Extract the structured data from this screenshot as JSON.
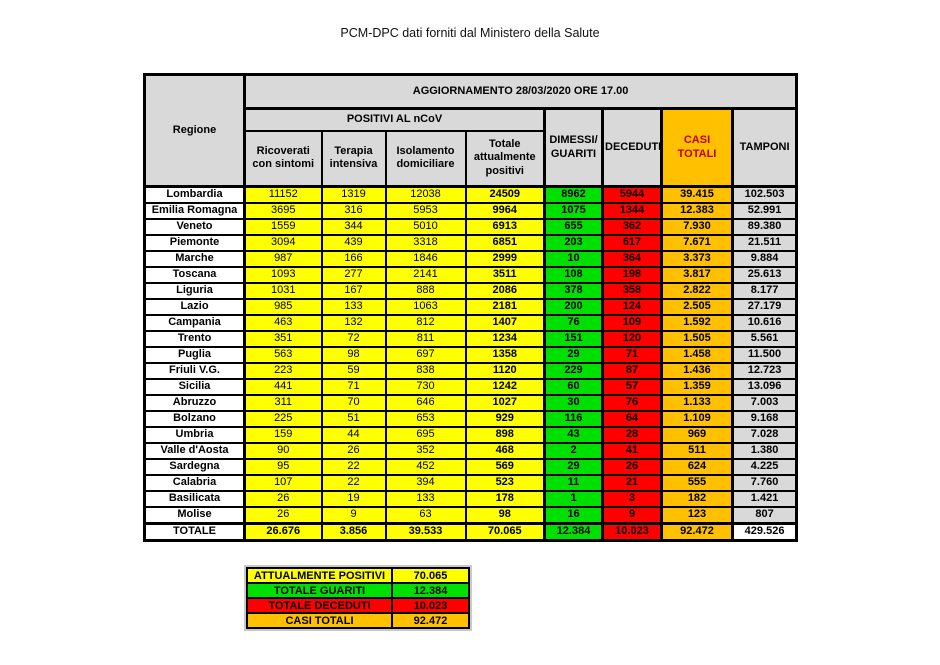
{
  "page_title": "PCM-DPC dati forniti dal Ministero della Salute",
  "colors": {
    "yellow": "#FFFF00",
    "green": "#00E000",
    "red": "#FF0000",
    "orange": "#FFC000",
    "header_gray": "#D9D9D9",
    "casi_totali_header_text": "#C00000"
  },
  "chart_data": {
    "type": "table",
    "update_header": "AGGIORNAMENTO 28/03/2020 ORE 17.00",
    "region_header": "Regione",
    "group_header": "POSITIVI AL nCoV",
    "sub_headers": [
      "Ricoverati con sintomi",
      "Terapia intensiva",
      "Isolamento domiciliare",
      "Totale attualmente positivi"
    ],
    "dimessi_header": "DIMESSI/\nGUARITI",
    "deceduti_header": "DECEDUTI",
    "casi_totali_header": "CASI TOTALI",
    "tamponi_header": "TAMPONI",
    "columns": [
      "Regione",
      "Ricoverati con sintomi",
      "Terapia intensiva",
      "Isolamento domiciliare",
      "Totale attualmente positivi",
      "DIMESSI/GUARITI",
      "DECEDUTI",
      "CASI TOTALI",
      "TAMPONI"
    ],
    "rows": [
      {
        "regione": "Lombardia",
        "values": [
          "11152",
          "1319",
          "12038",
          "24509",
          "8962",
          "5944",
          "39.415",
          "102.503"
        ]
      },
      {
        "regione": "Emilia Romagna",
        "values": [
          "3695",
          "316",
          "5953",
          "9964",
          "1075",
          "1344",
          "12.383",
          "52.991"
        ]
      },
      {
        "regione": "Veneto",
        "values": [
          "1559",
          "344",
          "5010",
          "6913",
          "655",
          "362",
          "7.930",
          "89.380"
        ]
      },
      {
        "regione": "Piemonte",
        "values": [
          "3094",
          "439",
          "3318",
          "6851",
          "203",
          "617",
          "7.671",
          "21.511"
        ]
      },
      {
        "regione": "Marche",
        "values": [
          "987",
          "166",
          "1846",
          "2999",
          "10",
          "364",
          "3.373",
          "9.884"
        ]
      },
      {
        "regione": "Toscana",
        "values": [
          "1093",
          "277",
          "2141",
          "3511",
          "108",
          "198",
          "3.817",
          "25.613"
        ]
      },
      {
        "regione": "Liguria",
        "values": [
          "1031",
          "167",
          "888",
          "2086",
          "378",
          "358",
          "2.822",
          "8.177"
        ]
      },
      {
        "regione": "Lazio",
        "values": [
          "985",
          "133",
          "1063",
          "2181",
          "200",
          "124",
          "2.505",
          "27.179"
        ]
      },
      {
        "regione": "Campania",
        "values": [
          "463",
          "132",
          "812",
          "1407",
          "76",
          "109",
          "1.592",
          "10.616"
        ]
      },
      {
        "regione": "Trento",
        "values": [
          "351",
          "72",
          "811",
          "1234",
          "151",
          "120",
          "1.505",
          "5.561"
        ]
      },
      {
        "regione": "Puglia",
        "values": [
          "563",
          "98",
          "697",
          "1358",
          "29",
          "71",
          "1.458",
          "11.500"
        ]
      },
      {
        "regione": "Friuli V.G.",
        "values": [
          "223",
          "59",
          "838",
          "1120",
          "229",
          "87",
          "1.436",
          "12.723"
        ]
      },
      {
        "regione": "Sicilia",
        "values": [
          "441",
          "71",
          "730",
          "1242",
          "60",
          "57",
          "1.359",
          "13.096"
        ]
      },
      {
        "regione": "Abruzzo",
        "values": [
          "311",
          "70",
          "646",
          "1027",
          "30",
          "76",
          "1.133",
          "7.003"
        ]
      },
      {
        "regione": "Bolzano",
        "values": [
          "225",
          "51",
          "653",
          "929",
          "116",
          "64",
          "1.109",
          "9.168"
        ]
      },
      {
        "regione": "Umbria",
        "values": [
          "159",
          "44",
          "695",
          "898",
          "43",
          "28",
          "969",
          "7.028"
        ]
      },
      {
        "regione": "Valle d'Aosta",
        "values": [
          "90",
          "26",
          "352",
          "468",
          "2",
          "41",
          "511",
          "1.380"
        ]
      },
      {
        "regione": "Sardegna",
        "values": [
          "95",
          "22",
          "452",
          "569",
          "29",
          "26",
          "624",
          "4.225"
        ]
      },
      {
        "regione": "Calabria",
        "values": [
          "107",
          "22",
          "394",
          "523",
          "11",
          "21",
          "555",
          "7.760"
        ]
      },
      {
        "regione": "Basilicata",
        "values": [
          "26",
          "19",
          "133",
          "178",
          "1",
          "3",
          "182",
          "1.421"
        ]
      },
      {
        "regione": "Molise",
        "values": [
          "26",
          "9",
          "63",
          "98",
          "16",
          "9",
          "123",
          "807"
        ]
      }
    ],
    "total_row": {
      "regione": "TOTALE",
      "values": [
        "26.676",
        "3.856",
        "39.533",
        "70.065",
        "12.384",
        "10.023",
        "92.472",
        "429.526"
      ]
    }
  },
  "legend": {
    "rows": [
      {
        "label": "ATTUALMENTE POSITIVI",
        "value": "70.065"
      },
      {
        "label": "TOTALE GUARITI",
        "value": "12.384"
      },
      {
        "label": "TOTALE DECEDUTI",
        "value": "10.023"
      },
      {
        "label": "CASI TOTALI",
        "value": "92.472"
      }
    ]
  }
}
